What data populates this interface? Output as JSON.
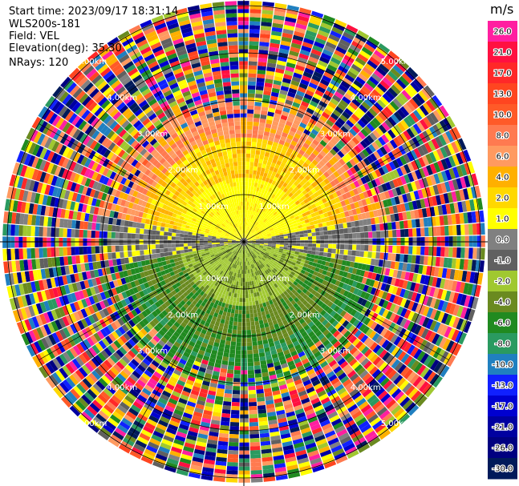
{
  "header": {
    "start_time": "Start time: 2023/09/17 18:31:14",
    "instrument": "WLS200s-181",
    "field": "Field: VEL",
    "elevation": "Elevation(deg): 35.30",
    "nrays": "NRays: 120"
  },
  "chart_data": {
    "type": "heatmap",
    "projection": "polar",
    "field": "VEL",
    "rays": 120,
    "range_rings_km": [
      1.0,
      2.0,
      3.0,
      4.0,
      5.0
    ],
    "ring_labels": [
      "1.00km",
      "2.00km",
      "3.00km",
      "4.00km",
      "5.00km"
    ],
    "max_range_km": 5.1,
    "colorbar": {
      "unit": "m/s",
      "ticks": [
        "26.0",
        "21.0",
        "17.0",
        "13.0",
        "10.0",
        "8.0",
        "6.0",
        "4.0",
        "2.0",
        "1.0",
        "0.0",
        "-1.0",
        "-2.0",
        "-4.0",
        "-6.0",
        "-8.0",
        "-10.0",
        "-13.0",
        "-17.0",
        "-21.0",
        "-26.0",
        "-30.0"
      ],
      "colors": [
        "#ff1fa0",
        "#ff1040",
        "#ff2828",
        "#ff4520",
        "#ff5a28",
        "#ff7a50",
        "#ff9a60",
        "#ffb000",
        "#ffd800",
        "#ffff00",
        "#808080",
        "#606060",
        "#a0c830",
        "#6a8a20",
        "#208a20",
        "#2a9a60",
        "#2080c0",
        "#1020ff",
        "#0000d0",
        "#0000a0",
        "#000080",
        "#001a5a"
      ]
    },
    "pattern": {
      "north_sector": "positive (yellow/orange) within ~3 km",
      "south_sector": "negative (green) within ~3 km",
      "east_west_axis": "near zero (gray)",
      "beyond_3km": "noisy, all colors"
    }
  }
}
